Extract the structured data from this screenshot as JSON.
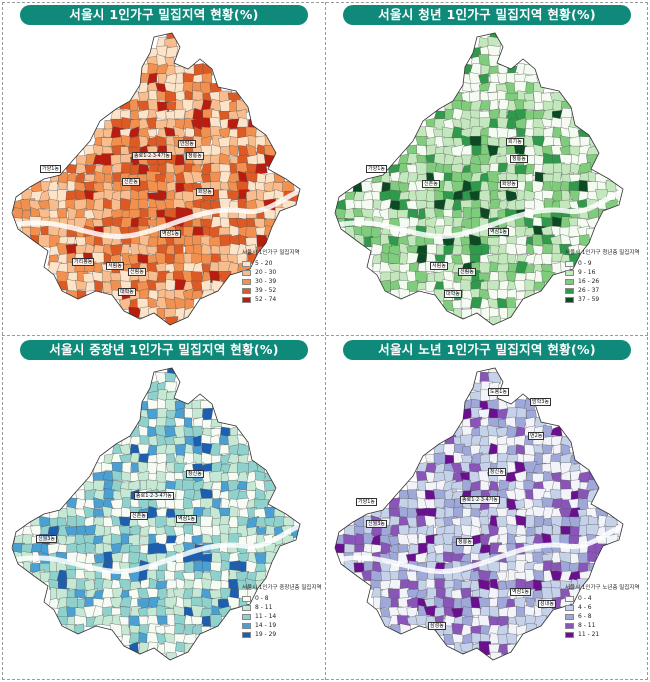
{
  "panels": [
    {
      "title": "서울시 1인가구 밀집지역 현황(%)",
      "legend_title": "서울시 1인가구 밀집지역",
      "legend": [
        {
          "label": "5 - 20",
          "color": "#fde3c8"
        },
        {
          "label": "20 - 30",
          "color": "#f9bc8c"
        },
        {
          "label": "30 - 39",
          "color": "#f2914f"
        },
        {
          "label": "39 - 52",
          "color": "#dd5a25"
        },
        {
          "label": "52 - 74",
          "color": "#b81d0f"
        }
      ]
    },
    {
      "title": "서울시 청년 1인가구 밀집지역 현황(%)",
      "legend_title": "서울시 1인가구 청년층 밀집지역",
      "legend": [
        {
          "label": "0 - 9",
          "color": "#f4fbf1"
        },
        {
          "label": "9 - 16",
          "color": "#c4e8bd"
        },
        {
          "label": "16 - 26",
          "color": "#7fcc7c"
        },
        {
          "label": "26 - 37",
          "color": "#2f9a4b"
        },
        {
          "label": "37 - 59",
          "color": "#0b4a22"
        }
      ]
    },
    {
      "title": "서울시 중장년 1인가구 밀집지역 현황(%)",
      "legend_title": "서울시 1인가구 중장년층 밀집지역",
      "legend": [
        {
          "label": "0 - 8",
          "color": "#f6fbf4"
        },
        {
          "label": "8 - 11",
          "color": "#c6e9d6"
        },
        {
          "label": "11 - 14",
          "color": "#8fd1cc"
        },
        {
          "label": "14 - 19",
          "color": "#4a9fd3"
        },
        {
          "label": "19 - 29",
          "color": "#1c5fb0"
        }
      ]
    },
    {
      "title": "서울시 노년 1인가구 밀집지역 현황(%)",
      "legend_title": "서울시 1인가구 노년층 밀집지역",
      "legend": [
        {
          "label": "0 - 4",
          "color": "#f3f4fa"
        },
        {
          "label": "4 - 6",
          "color": "#c5d2ea"
        },
        {
          "label": "6 - 8",
          "color": "#9fa8d9"
        },
        {
          "label": "8 - 11",
          "color": "#8a55b8"
        },
        {
          "label": "11 - 21",
          "color": "#6b0f91"
        }
      ]
    }
  ],
  "labels": {
    "p0": [
      "종로1·2·3·4가동",
      "신촌동",
      "화양동",
      "가리봉동",
      "서림동",
      "신림동",
      "역삼1동",
      "대학동",
      "안암동",
      "청룡동",
      "가양1동"
    ],
    "p1": [
      "가양1동",
      "신촌동",
      "화양동",
      "서림동",
      "역삼1동",
      "대학동",
      "회기동",
      "신림동",
      "청룡동"
    ],
    "p2": [
      "종로1·2·3·4가동",
      "신촌동",
      "창신동",
      "신월3동",
      "역삼1동"
    ],
    "p3": [
      "도봉1동",
      "방학3동",
      "번2동",
      "창신동",
      "종로1·2·3·4가동",
      "가양1동",
      "신월3동",
      "청룡동",
      "역삼1동",
      "성내동",
      "삼성동"
    ]
  }
}
